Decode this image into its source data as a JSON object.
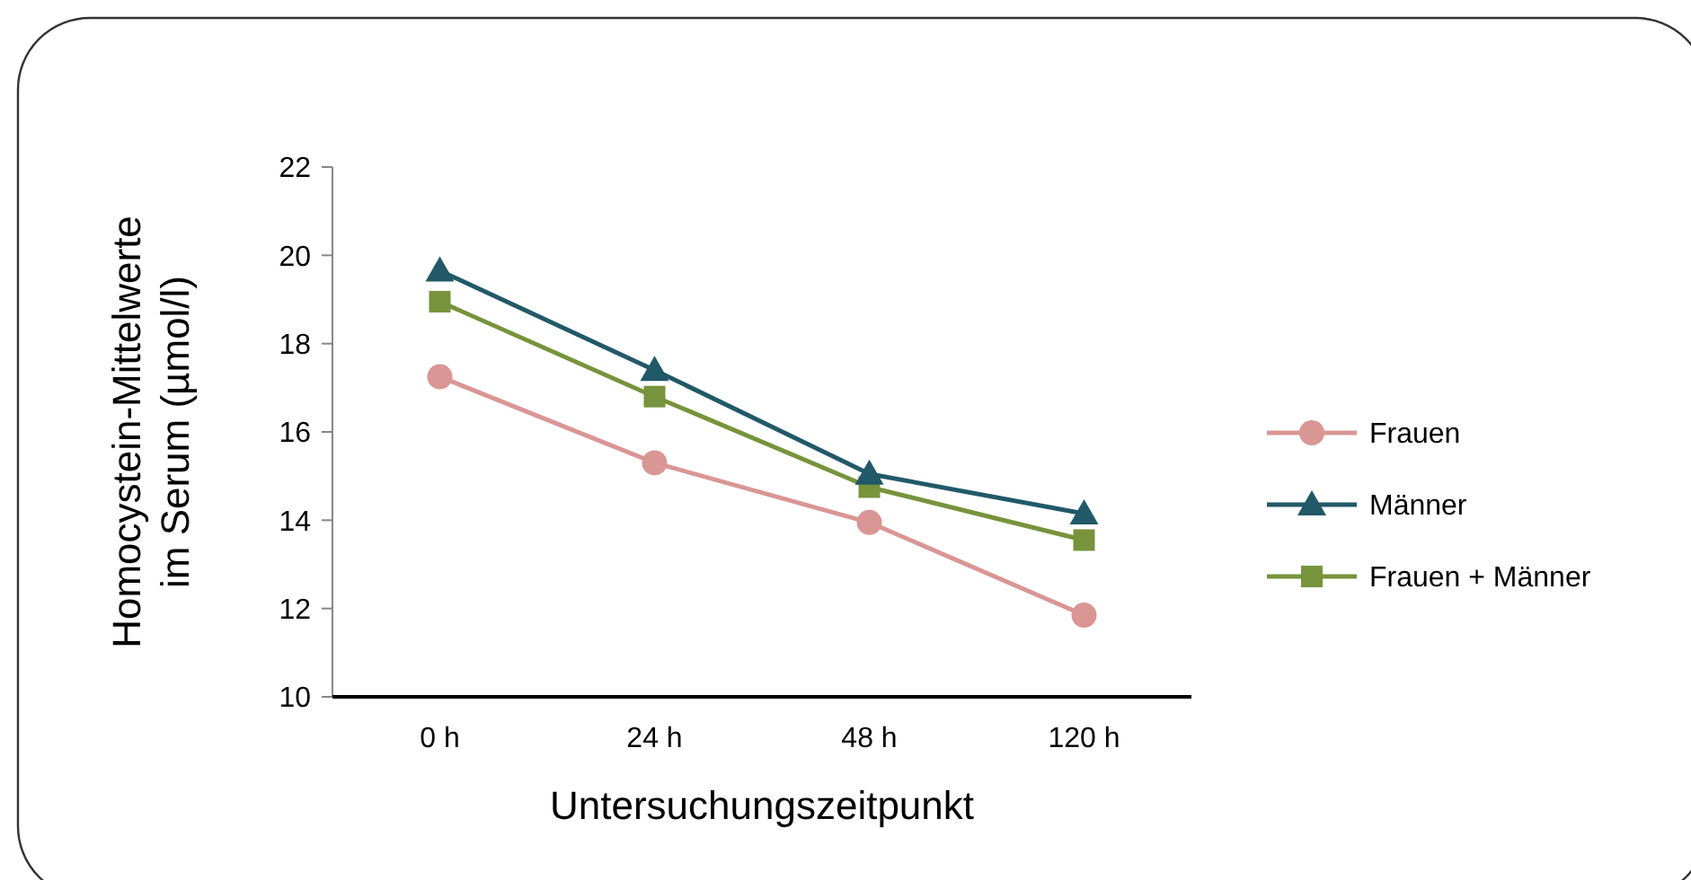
{
  "chart_data": {
    "type": "line",
    "xlabel": "Untersuchungszeitpunkt",
    "ylabel": "Homocystein-Mittelwerte im Serum (µmol/l)",
    "categories": [
      "0 h",
      "24 h",
      "48 h",
      "120 h"
    ],
    "series": [
      {
        "name": "Frauen",
        "color": "#d99694",
        "marker": "circle",
        "values": [
          17.25,
          15.3,
          13.95,
          11.85
        ]
      },
      {
        "name": "Männer",
        "color": "#215968",
        "marker": "triangle",
        "values": [
          19.65,
          17.4,
          15.05,
          14.15
        ]
      },
      {
        "name": "Frauen + Männer",
        "color": "#77933c",
        "marker": "square",
        "values": [
          18.95,
          16.8,
          14.75,
          13.55
        ]
      }
    ],
    "ylim": [
      10,
      22
    ],
    "yticks": [
      10,
      12,
      14,
      16,
      18,
      20,
      22
    ],
    "grid": false,
    "legend": "right"
  }
}
